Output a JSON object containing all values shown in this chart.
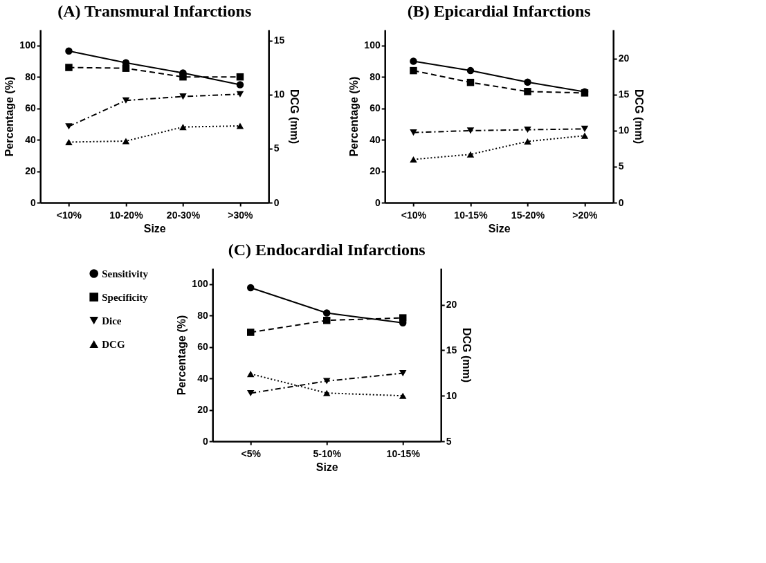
{
  "chart_data": [
    {
      "type": "line",
      "title": "(A) Transmural Infarctions",
      "xlabel": "Size",
      "ylabel": "Percentage (%)",
      "y2label": "DCG (mm)",
      "categories": [
        "<10%",
        "10-20%",
        "20-30%",
        ">30%"
      ],
      "ylim": [
        0,
        110
      ],
      "yticks": [
        0,
        20,
        40,
        60,
        80,
        100
      ],
      "y2lim": [
        0,
        16
      ],
      "y2ticks": [
        0,
        5,
        10,
        15
      ],
      "series": [
        {
          "color": "#000000",
          "marker": "circle",
          "line_style": "solid",
          "values": [
            96.5,
            89,
            82.5,
            75
          ]
        },
        {
          "color": "#000000",
          "marker": "square",
          "line_style": "dashed",
          "values": [
            86,
            85.5,
            80,
            80
          ]
        },
        {
          "color": "#000000",
          "marker": "triangle-down",
          "line_style": "dashdot",
          "values": [
            48.5,
            65,
            67.5,
            69
          ]
        },
        {
          "color": "#000000",
          "marker": "triangle",
          "line_style": "dotted",
          "axis": "y2",
          "values": [
            5.6,
            5.7,
            7.0,
            7.1
          ]
        }
      ]
    },
    {
      "type": "line",
      "title": "(B) Epicardial Infarctions",
      "xlabel": "Size",
      "ylabel": "Percentage (%)",
      "y2label": "DCG (mm)",
      "categories": [
        "<10%",
        "10-15%",
        "15-20%",
        ">20%"
      ],
      "ylim": [
        0,
        110
      ],
      "yticks": [
        0,
        20,
        40,
        60,
        80,
        100
      ],
      "y2lim": [
        0,
        24
      ],
      "y2ticks": [
        0,
        5,
        10,
        15,
        20
      ],
      "series": [
        {
          "color": "#000000",
          "marker": "circle",
          "line_style": "solid",
          "values": [
            90,
            84,
            76.7,
            70.5
          ]
        },
        {
          "color": "#000000",
          "marker": "square",
          "line_style": "dashed",
          "values": [
            84,
            76.5,
            70.7,
            69.8
          ]
        },
        {
          "color": "#000000",
          "marker": "triangle-down",
          "line_style": "dashdot",
          "values": [
            44.6,
            45.8,
            46.4,
            46.9
          ]
        },
        {
          "color": "#000000",
          "marker": "triangle",
          "line_style": "dotted",
          "axis": "y2",
          "values": [
            6.0,
            6.7,
            8.5,
            9.3
          ]
        }
      ]
    },
    {
      "type": "line",
      "title": "(C) Endocardial Infarctions",
      "xlabel": "Size",
      "ylabel": "Percentage (%)",
      "y2label": "DCG (mm)",
      "categories": [
        "<5%",
        "5-10%",
        "10-15%"
      ],
      "ylim": [
        0,
        110
      ],
      "yticks": [
        0,
        20,
        40,
        60,
        80,
        100
      ],
      "y2lim": [
        5,
        24
      ],
      "y2ticks": [
        5,
        10,
        15,
        20
      ],
      "legend": "left",
      "series": [
        {
          "name": "Sensitivity",
          "color": "#000000",
          "marker": "circle",
          "line_style": "solid",
          "values": [
            97.7,
            81.6,
            75.3
          ]
        },
        {
          "name": "Specificity",
          "color": "#000000",
          "marker": "square",
          "line_style": "dashed",
          "values": [
            69.3,
            76.9,
            78.5
          ]
        },
        {
          "name": "Dice",
          "color": "#000000",
          "marker": "triangle-down",
          "line_style": "dashdot",
          "values": [
            30.6,
            38.3,
            43.3
          ]
        },
        {
          "name": "DCG",
          "color": "#000000",
          "marker": "triangle",
          "line_style": "dotted",
          "axis": "y2",
          "values": [
            12.4,
            10.3,
            10.0
          ]
        }
      ]
    }
  ]
}
